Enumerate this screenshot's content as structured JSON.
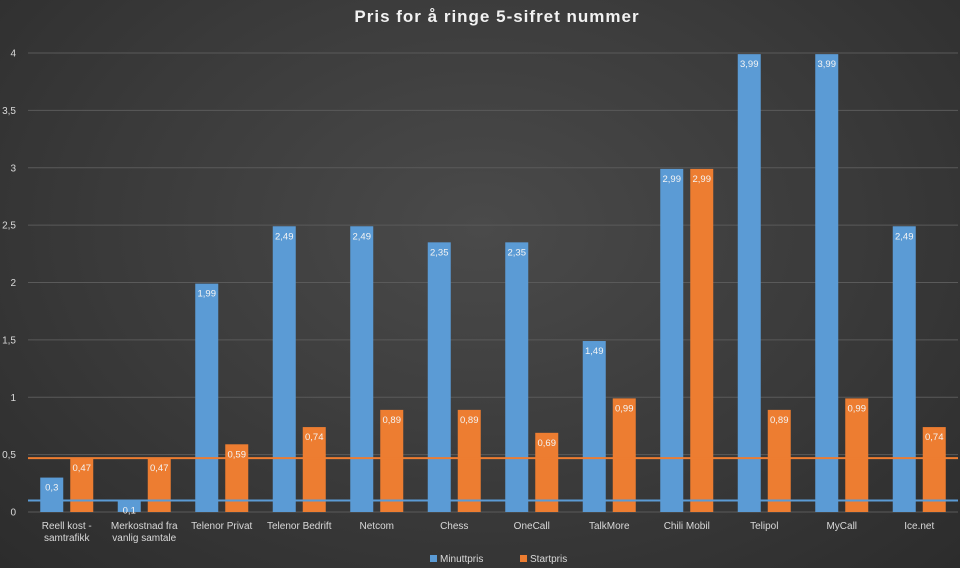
{
  "chart_data": {
    "type": "bar",
    "title": "Pris for å ringe 5-sifret nummer",
    "xlabel": "",
    "ylabel": "",
    "ylim": [
      0,
      4
    ],
    "yticks": [
      "0",
      "0,5",
      "1",
      "1,5",
      "2",
      "2,5",
      "3",
      "3,5",
      "4"
    ],
    "grid": true,
    "legend_position": "bottom",
    "categories": [
      [
        "Reell kost -",
        "samtrafikk"
      ],
      [
        "Merkostnad fra",
        "vanlig samtale"
      ],
      [
        "Telenor Privat"
      ],
      [
        "Telenor Bedrift"
      ],
      [
        "Netcom"
      ],
      [
        "Chess"
      ],
      [
        "OneCall"
      ],
      [
        "TalkMore"
      ],
      [
        "Chili Mobil"
      ],
      [
        "Telipol"
      ],
      [
        "MyCall"
      ],
      [
        "Ice.net"
      ]
    ],
    "series": [
      {
        "name": "Minuttpris",
        "color": "#5b9bd5",
        "values": [
          0.3,
          0.1,
          1.99,
          2.49,
          2.49,
          2.35,
          2.35,
          1.49,
          2.99,
          3.99,
          3.99,
          2.49
        ],
        "labels": [
          "0,3",
          "0,1",
          "1,99",
          "2,49",
          "2,49",
          "2,35",
          "2,35",
          "1,49",
          "2,99",
          "3,99",
          "3,99",
          "2,49"
        ]
      },
      {
        "name": "Startpris",
        "color": "#ed7d31",
        "values": [
          0.47,
          0.47,
          0.59,
          0.74,
          0.89,
          0.89,
          0.69,
          0.99,
          2.99,
          0.89,
          0.99,
          0.74
        ],
        "labels": [
          "0,47",
          "0,47",
          "0,59",
          "0,74",
          "0,89",
          "0,89",
          "0,69",
          "0,99",
          "2,99",
          "0,89",
          "0,99",
          "0,74"
        ]
      }
    ],
    "reference_lines": [
      {
        "value": 0.47,
        "color": "#ed7d31"
      },
      {
        "value": 0.1,
        "color": "#5b9bd5"
      }
    ]
  }
}
